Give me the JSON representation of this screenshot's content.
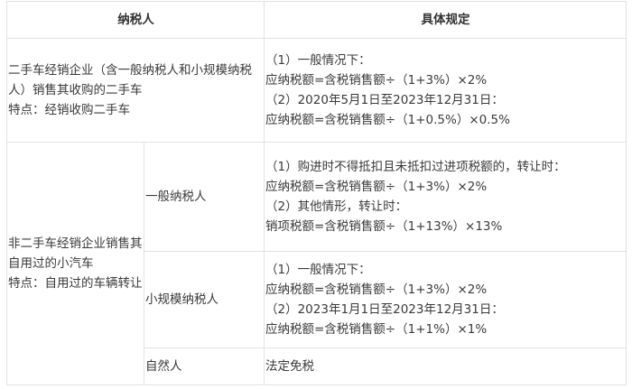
{
  "headers": {
    "taxpayer": "纳税人",
    "rules": "具体规定"
  },
  "rows": {
    "dealer": {
      "label": "二手车经销企业（含一般纳税人和小规模纳税人）销售其收购的二手车\n特点：经销收购二手车",
      "rule": "（1）一般情况下：\n应纳税额=含税销售额÷（1+3%）×2%\n（2）2020年5月1日至2023年12月31日：\n应纳税额=含税销售额÷（1+0.5%）×0.5%"
    },
    "non_dealer": {
      "label": "非二手车经销企业销售其自用过的小汽车\n特点：自用过的车辆转让",
      "general": {
        "type": "一般纳税人",
        "rule": "（1）购进时不得抵扣且未抵扣过进项税额的，转让时：\n应纳税额=含税销售额÷（1+3%）×2%\n（2）其他情形，转让时：\n销项税额=含税销售额÷（1+13%）×13%"
      },
      "small": {
        "type": "小规模纳税人",
        "rule": "（1）一般情况下：\n应纳税额=含税销售额÷（1+3%）×2%\n（2）2023年1月1日至2023年12月31日：\n应纳税额=含税销售额÷（1+1%）×1%"
      },
      "natural": {
        "type": "自然人",
        "rule": "法定免税"
      }
    }
  }
}
